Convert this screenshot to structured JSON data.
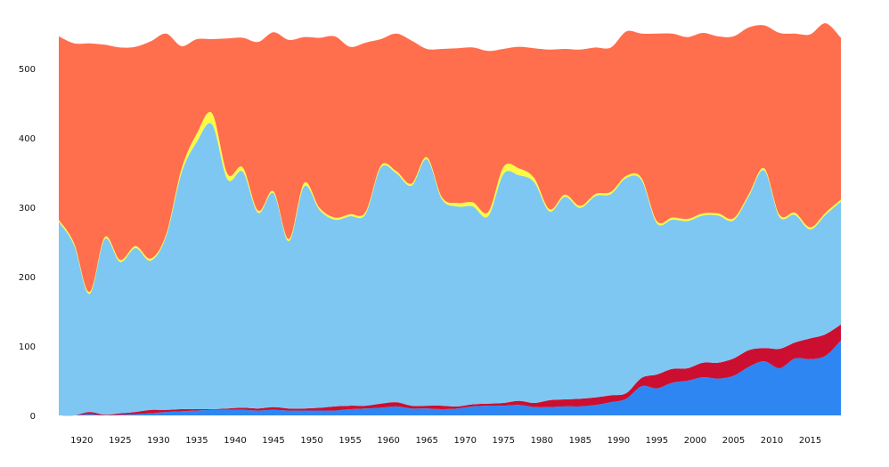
{
  "chart_data": {
    "type": "area",
    "stacked": true,
    "xlabel": "",
    "ylabel": "",
    "xlim": [
      1917,
      2019
    ],
    "ylim": [
      0,
      560
    ],
    "x_ticks": [
      1920,
      1925,
      1930,
      1935,
      1940,
      1945,
      1950,
      1955,
      1960,
      1965,
      1970,
      1975,
      1980,
      1985,
      1990,
      1995,
      2000,
      2005,
      2010,
      2015
    ],
    "y_ticks": [
      0,
      100,
      200,
      300,
      400,
      500
    ],
    "grid": false,
    "legend": "none",
    "x": [
      1917,
      1919,
      1921,
      1923,
      1925,
      1927,
      1929,
      1931,
      1933,
      1935,
      1937,
      1939,
      1941,
      1943,
      1945,
      1947,
      1949,
      1951,
      1953,
      1955,
      1957,
      1959,
      1961,
      1963,
      1965,
      1967,
      1969,
      1971,
      1973,
      1975,
      1977,
      1979,
      1981,
      1983,
      1985,
      1987,
      1989,
      1991,
      1993,
      1995,
      1997,
      1999,
      2001,
      2003,
      2005,
      2007,
      2009,
      2011,
      2013,
      2015,
      2017,
      2019
    ],
    "series": [
      {
        "color": "#2e86f2",
        "values": [
          0,
          0,
          2,
          0,
          1,
          2,
          3,
          5,
          6,
          7,
          8,
          8,
          8,
          7,
          8,
          7,
          7,
          7,
          7,
          9,
          10,
          11,
          13,
          10,
          10,
          9,
          10,
          13,
          14,
          14,
          15,
          12,
          12,
          13,
          13,
          15,
          19,
          24,
          42,
          39,
          47,
          50,
          55,
          53,
          57,
          70,
          78,
          68,
          82,
          81,
          86,
          108
        ]
      },
      {
        "color": "#cc0f30",
        "values": [
          0,
          0,
          3,
          1,
          2,
          3,
          5,
          3,
          3,
          2,
          1,
          2,
          3,
          3,
          4,
          3,
          3,
          4,
          6,
          5,
          4,
          6,
          6,
          4,
          4,
          5,
          3,
          3,
          3,
          4,
          6,
          6,
          10,
          10,
          11,
          11,
          10,
          8,
          12,
          20,
          20,
          18,
          21,
          23,
          25,
          24,
          19,
          28,
          23,
          30,
          31,
          23
        ]
      },
      {
        "color": "#7ec7f2",
        "values": [
          279,
          245,
          170,
          253,
          218,
          236,
          215,
          250,
          340,
          385,
          410,
          330,
          340,
          282,
          308,
          241,
          320,
          285,
          269,
          273,
          276,
          340,
          330,
          317,
          355,
          297,
          288,
          285,
          270,
          330,
          325,
          318,
          272,
          292,
          275,
          290,
          290,
          310,
          285,
          218,
          215,
          212,
          212,
          212,
          199,
          222,
          256,
          190,
          184,
          157,
          172,
          177
        ]
      },
      {
        "color": "#fbfa46",
        "values": [
          3,
          3,
          3,
          3,
          3,
          3,
          3,
          3,
          6,
          12,
          16,
          8,
          6,
          3,
          3,
          3,
          5,
          3,
          3,
          3,
          3,
          3,
          3,
          3,
          3,
          3,
          5,
          6,
          6,
          10,
          10,
          6,
          3,
          3,
          3,
          3,
          3,
          3,
          3,
          3,
          3,
          3,
          3,
          3,
          3,
          3,
          3,
          3,
          3,
          3,
          3,
          3
        ]
      },
      {
        "color": "#ff6e4d",
        "values": [
          264,
          288,
          358,
          277,
          306,
          287,
          313,
          289,
          177,
          136,
          107,
          195,
          187,
          243,
          229,
          287,
          210,
          245,
          261,
          241,
          244,
          182,
          198,
          206,
          156,
          214,
          223,
          223,
          232,
          170,
          175,
          187,
          230,
          210,
          225,
          211,
          208,
          208,
          208,
          270,
          265,
          262,
          260,
          255,
          262,
          240,
          206,
          262,
          258,
          278,
          273,
          233
        ]
      }
    ]
  }
}
